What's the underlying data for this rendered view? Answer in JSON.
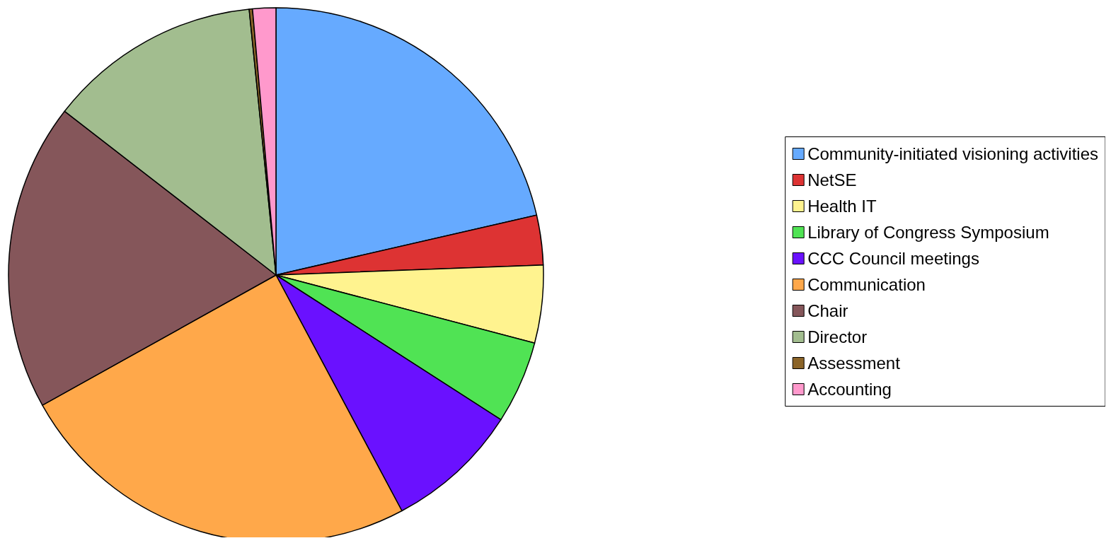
{
  "chart_data": {
    "type": "pie",
    "categories": [
      "Community-initiated visioning activities",
      "NetSE",
      "Health IT",
      "Library of Congress Symposium",
      "CCC Council meetings",
      "Communication",
      "Chair",
      "Director",
      "Assessment",
      "Accounting"
    ],
    "values": [
      21.4,
      3.0,
      4.7,
      5.0,
      8.1,
      24.7,
      18.6,
      12.9,
      0.2,
      1.4
    ],
    "colors": [
      "#66aaff",
      "#dd3333",
      "#fff38f",
      "#50e354",
      "#6a11ff",
      "#ffa84a",
      "#85565a",
      "#a2bd8f",
      "#8b6428",
      "#ff99cc"
    ],
    "legend": "right"
  }
}
